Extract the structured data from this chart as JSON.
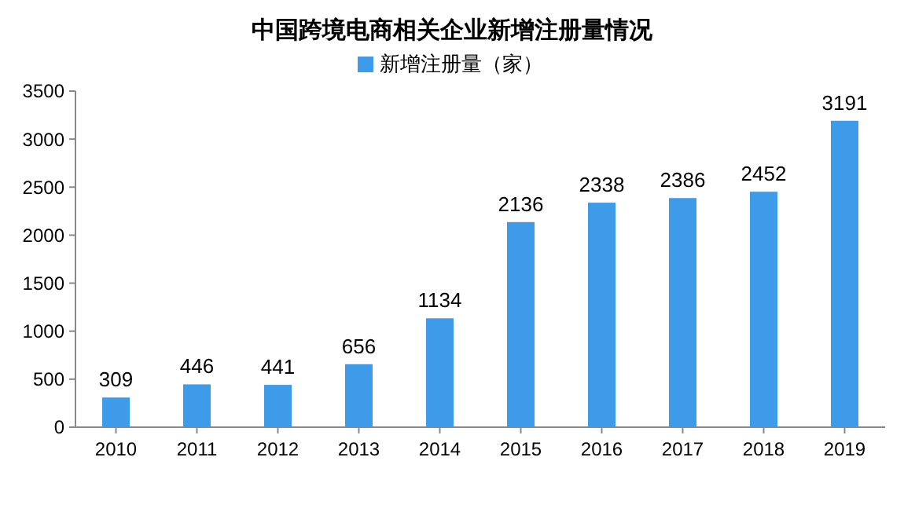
{
  "chart_data": {
    "type": "bar",
    "title": "中国跨境电商相关企业新增注册量情况",
    "categories": [
      "2010",
      "2011",
      "2012",
      "2013",
      "2014",
      "2015",
      "2016",
      "2017",
      "2018",
      "2019"
    ],
    "series": [
      {
        "name": "新增注册量（家）",
        "color": "#3d9be9",
        "values": [
          309,
          446,
          441,
          656,
          1134,
          2136,
          2338,
          2386,
          2452,
          3191
        ]
      }
    ],
    "ylim": [
      0,
      3500
    ],
    "yticks": [
      0,
      500,
      1000,
      1500,
      2000,
      2500,
      3000,
      3500
    ],
    "data_labels": true,
    "legend": "top",
    "grid": false
  }
}
